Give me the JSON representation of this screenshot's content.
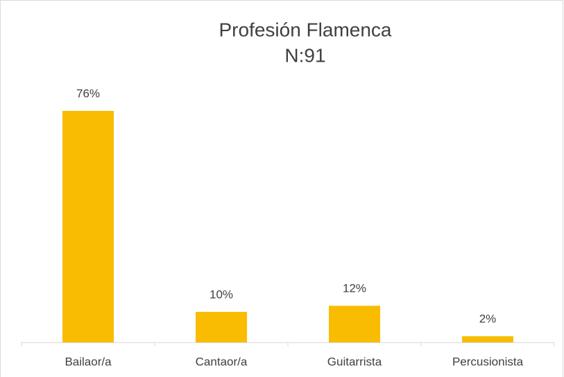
{
  "chart_data": {
    "type": "bar",
    "title": "Profesión Flamenca",
    "subtitle": "N:91",
    "categories": [
      "Bailaor/a",
      "Cantaor/a",
      "Guitarrista",
      "Percusionista"
    ],
    "values": [
      76,
      10,
      12,
      2
    ],
    "value_labels": [
      "76%",
      "10%",
      "12%",
      "2%"
    ],
    "color": "#f9bc00"
  }
}
